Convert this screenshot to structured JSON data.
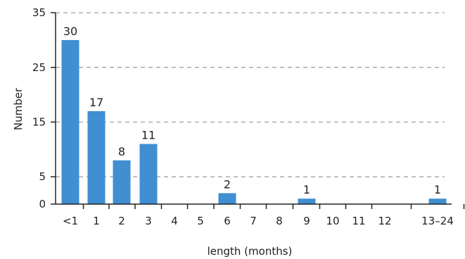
{
  "chart_data": {
    "type": "bar",
    "title": "",
    "xlabel": "length (months)",
    "ylabel": "Number",
    "categories": [
      "<1",
      "1",
      "2",
      "3",
      "4",
      "5",
      "6",
      "7",
      "8",
      "9",
      "10",
      "11",
      "12",
      "13–24"
    ],
    "values": [
      30,
      17,
      8,
      11,
      0,
      0,
      2,
      0,
      0,
      1,
      0,
      0,
      0,
      1
    ],
    "data_labels": [
      "30",
      "17",
      "8",
      "11",
      "",
      "",
      "2",
      "",
      "",
      "1",
      "",
      "",
      "",
      "1"
    ],
    "yticks": [
      0,
      5,
      15,
      25,
      35
    ],
    "ylim": [
      0,
      35
    ],
    "grid": "horizontal dashed",
    "bar_color": "#3f8fd2",
    "grid_color": "#9a9a9a"
  }
}
